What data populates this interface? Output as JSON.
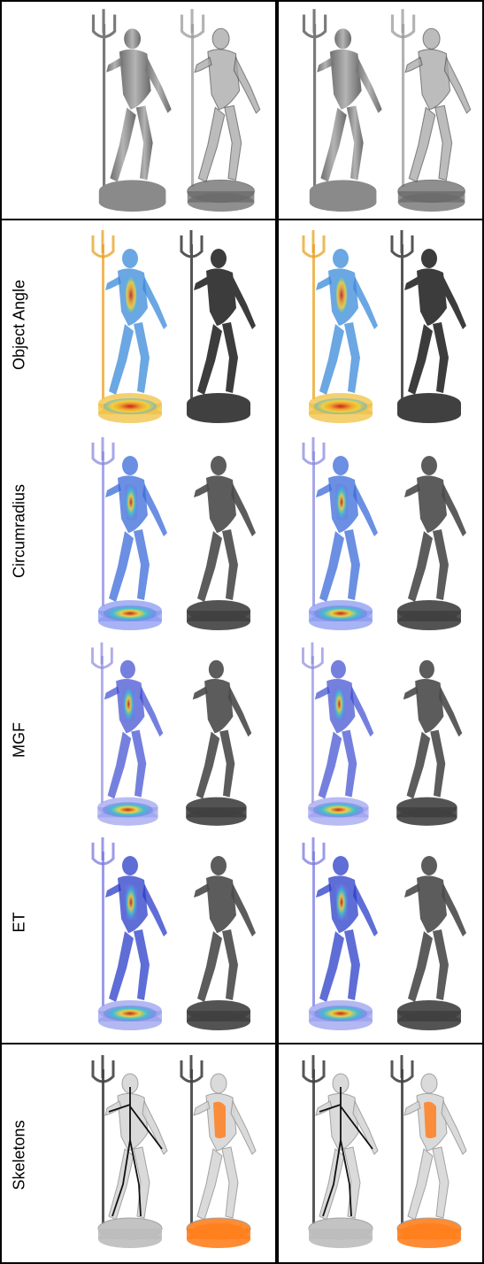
{
  "rows": [
    {
      "id": "input",
      "label": ""
    },
    {
      "id": "object-angle",
      "label": "Object Angle"
    },
    {
      "id": "circumradius",
      "label": "Circumradius"
    },
    {
      "id": "mgf",
      "label": "MGF"
    },
    {
      "id": "et",
      "label": "ET"
    },
    {
      "id": "skeletons",
      "label": "Skeletons"
    }
  ],
  "columns": [
    "left-pair",
    "right-pair"
  ],
  "colors": {
    "mesh_gray": "#8c8c8c",
    "mesh_dark": "#505050",
    "heat_blue": "#2a3cc8",
    "heat_red": "#c81e14",
    "heat_yellow": "#f0d23c",
    "skeleton_orange": "#ff7f1e",
    "divider": "#000000"
  }
}
